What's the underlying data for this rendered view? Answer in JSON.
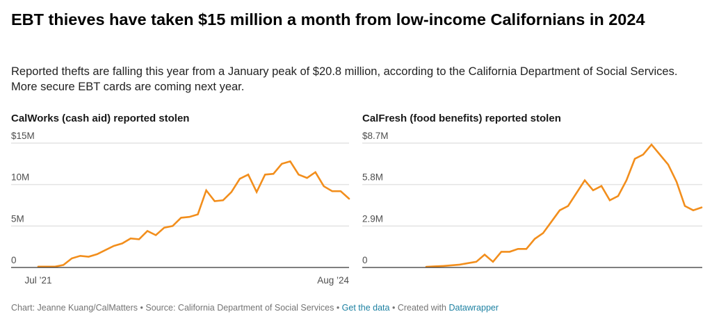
{
  "title": "EBT thieves have taken $15 million a month from low-income Californians in 2024",
  "description": "Reported thefts are falling this year from a January peak of $20.8 million, according to the California Department of Social Services. More secure EBT cards are coming next year.",
  "line_color": "#f28e1c",
  "chart_data": [
    {
      "type": "line",
      "title": "CalWorks (cash aid) reported stolen",
      "xlabel": "",
      "ylabel": "",
      "x_tick_labels": [
        "Jul ’21",
        "Aug ’24"
      ],
      "y_ticks": [
        0,
        5,
        10,
        15
      ],
      "y_tick_labels": [
        "0",
        "5M",
        "10M",
        "$15M"
      ],
      "ylim": [
        0,
        15
      ],
      "units": "million USD",
      "grid": true,
      "x_range": [
        "2021-07",
        "2024-08"
      ],
      "values": [
        0.1,
        0.1,
        0.1,
        0.3,
        1.1,
        1.4,
        1.3,
        1.6,
        2.1,
        2.6,
        2.9,
        3.5,
        3.4,
        4.4,
        3.9,
        4.8,
        5.0,
        6.0,
        6.1,
        6.4,
        9.3,
        8.0,
        8.1,
        9.1,
        10.7,
        11.2,
        9.1,
        11.2,
        11.3,
        12.5,
        12.8,
        11.2,
        10.8,
        11.5,
        9.8,
        9.2,
        9.2,
        8.3
      ]
    },
    {
      "type": "line",
      "title": "CalFresh (food benefits) reported stolen",
      "xlabel": "",
      "ylabel": "",
      "x_tick_labels": [],
      "y_ticks": [
        0,
        2.9,
        5.8,
        8.7
      ],
      "y_tick_labels": [
        "0",
        "2.9M",
        "5.8M",
        "$8.7M"
      ],
      "ylim": [
        0,
        8.7
      ],
      "units": "million USD",
      "grid": true,
      "values": [
        0.05,
        0.08,
        0.1,
        0.15,
        0.2,
        0.3,
        0.4,
        0.9,
        0.4,
        1.1,
        1.1,
        1.3,
        1.3,
        2.0,
        2.4,
        3.2,
        4.0,
        4.3,
        5.2,
        6.1,
        5.4,
        5.7,
        4.7,
        5.0,
        6.1,
        7.6,
        7.9,
        8.6,
        7.9,
        7.2,
        6.0,
        4.3,
        4.0,
        4.2
      ]
    }
  ],
  "footer": {
    "credit": "Chart: Jeanne Kuang/CalMatters",
    "separator": " • ",
    "source": "Source: California Department of Social Services",
    "get_data": "Get the data",
    "created_with": "Created with ",
    "datawrapper": "Datawrapper"
  }
}
